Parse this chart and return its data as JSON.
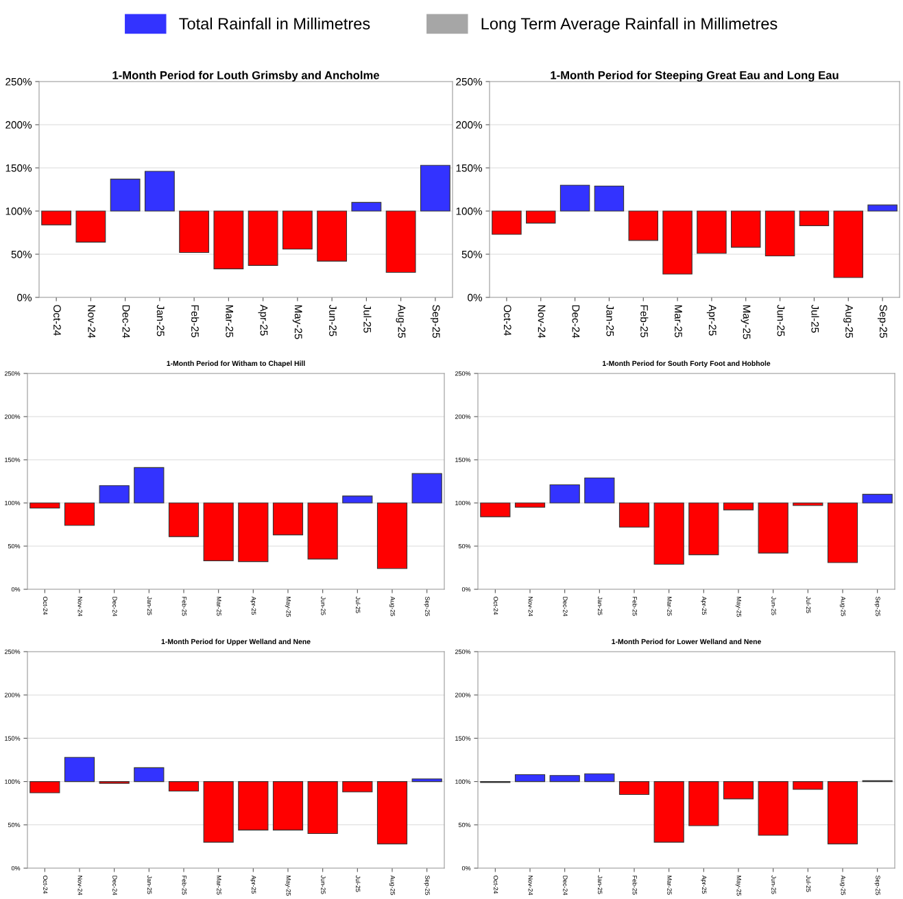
{
  "chart_data": [
    {
      "type": "bar",
      "title": "1-Month Period for Louth Grimsby and Ancholme",
      "categories": [
        "Oct-24",
        "Nov-24",
        "Dec-24",
        "Jan-25",
        "Feb-25",
        "Mar-25",
        "Apr-25",
        "May-25",
        "Jun-25",
        "Jul-25",
        "Aug-25",
        "Sep-25"
      ],
      "ylim": [
        0,
        250
      ],
      "yticks": [
        {
          "value": 0,
          "label": "0%"
        },
        {
          "value": 50,
          "label": "50%"
        },
        {
          "value": 100,
          "label": "100%"
        },
        {
          "value": 150,
          "label": "150%"
        },
        {
          "value": 200,
          "label": "200%"
        },
        {
          "value": 250,
          "label": "250%"
        }
      ],
      "grid": "y",
      "legend": "top",
      "series": [
        {
          "name": "Total Rainfall in Millimetres",
          "color": "#3333ff",
          "base": [
            100,
            100,
            100,
            100,
            100,
            100,
            100,
            100,
            100,
            100,
            100,
            100
          ],
          "values": [
            -16,
            -36,
            37,
            46,
            -48,
            -67,
            -63,
            -44,
            -58,
            10,
            -71,
            53
          ],
          "colors": [
            "#ff0000",
            "#ff0000",
            "#3333ff",
            "#3333ff",
            "#ff0000",
            "#ff0000",
            "#ff0000",
            "#ff0000",
            "#ff0000",
            "#3333ff",
            "#ff0000",
            "#3333ff"
          ]
        },
        {
          "name": "Long Term Average Rainfall in Millimetres",
          "color": "#a6a6a6",
          "values": [
            null,
            null,
            null,
            null,
            null,
            null,
            null,
            null,
            null,
            null,
            null,
            null
          ]
        }
      ]
    },
    {
      "type": "bar",
      "title": "1-Month Period for Steeping Great Eau and Long Eau",
      "categories": [
        "Oct-24",
        "Nov-24",
        "Dec-24",
        "Jan-25",
        "Feb-25",
        "Mar-25",
        "Apr-25",
        "May-25",
        "Jun-25",
        "Jul-25",
        "Aug-25",
        "Sep-25"
      ],
      "ylim": [
        0,
        250
      ],
      "yticks": [
        {
          "value": 0,
          "label": "0%"
        },
        {
          "value": 50,
          "label": "50%"
        },
        {
          "value": 100,
          "label": "100%"
        },
        {
          "value": 150,
          "label": "150%"
        },
        {
          "value": 200,
          "label": "200%"
        },
        {
          "value": 250,
          "label": "250%"
        }
      ],
      "grid": "y",
      "series": [
        {
          "base": [
            100,
            100,
            100,
            100,
            100,
            100,
            100,
            100,
            100,
            100,
            100,
            100
          ],
          "values": [
            -27,
            -14,
            30,
            29,
            -34,
            -73,
            -49,
            -42,
            -52,
            -17,
            -77,
            7
          ],
          "colors": [
            "#ff0000",
            "#ff0000",
            "#3333ff",
            "#3333ff",
            "#ff0000",
            "#ff0000",
            "#ff0000",
            "#ff0000",
            "#ff0000",
            "#ff0000",
            "#ff0000",
            "#3333ff"
          ]
        }
      ]
    },
    {
      "type": "bar",
      "title": "1-Month Period for Witham to Chapel Hill",
      "categories": [
        "Oct-24",
        "Nov-24",
        "Dec-24",
        "Jan-25",
        "Feb-25",
        "Mar-25",
        "Apr-25",
        "May-25",
        "Jun-25",
        "Jul-25",
        "Aug-25",
        "Sep-25"
      ],
      "ylim": [
        0,
        250
      ],
      "yticks": [
        {
          "value": 0,
          "label": "0%"
        },
        {
          "value": 50,
          "label": "50%"
        },
        {
          "value": 100,
          "label": "100%"
        },
        {
          "value": 150,
          "label": "150%"
        },
        {
          "value": 200,
          "label": "200%"
        },
        {
          "value": 250,
          "label": "250%"
        }
      ],
      "grid": "y",
      "series": [
        {
          "base": [
            100,
            100,
            100,
            100,
            100,
            100,
            100,
            100,
            100,
            100,
            100,
            100
          ],
          "values": [
            -6,
            -26,
            20,
            41,
            -39,
            -67,
            -68,
            -37,
            -65,
            8,
            -76,
            34
          ],
          "colors": [
            "#ff0000",
            "#ff0000",
            "#3333ff",
            "#3333ff",
            "#ff0000",
            "#ff0000",
            "#ff0000",
            "#ff0000",
            "#ff0000",
            "#3333ff",
            "#ff0000",
            "#3333ff"
          ]
        }
      ]
    },
    {
      "type": "bar",
      "title": "1-Month Period for South Forty Foot and Hobhole",
      "categories": [
        "Oct-24",
        "Nov-24",
        "Dec-24",
        "Jan-25",
        "Feb-25",
        "Mar-25",
        "Apr-25",
        "May-25",
        "Jun-25",
        "Jul-25",
        "Aug-25",
        "Sep-25"
      ],
      "ylim": [
        0,
        250
      ],
      "yticks": [
        {
          "value": 0,
          "label": "0%"
        },
        {
          "value": 50,
          "label": "50%"
        },
        {
          "value": 100,
          "label": "100%"
        },
        {
          "value": 150,
          "label": "150%"
        },
        {
          "value": 200,
          "label": "200%"
        },
        {
          "value": 250,
          "label": "250%"
        }
      ],
      "grid": "y",
      "series": [
        {
          "base": [
            100,
            100,
            100,
            100,
            100,
            100,
            100,
            100,
            100,
            100,
            100,
            100
          ],
          "values": [
            -16,
            -5,
            21,
            29,
            -28,
            -71,
            -60,
            -8,
            -58,
            -3,
            -69,
            10
          ],
          "colors": [
            "#ff0000",
            "#ff0000",
            "#3333ff",
            "#3333ff",
            "#ff0000",
            "#ff0000",
            "#ff0000",
            "#ff0000",
            "#ff0000",
            "#ff0000",
            "#ff0000",
            "#3333ff"
          ]
        }
      ]
    },
    {
      "type": "bar",
      "title": "1-Month Period for Upper Welland and Nene",
      "categories": [
        "Oct-24",
        "Nov-24",
        "Dec-24",
        "Jan-25",
        "Feb-25",
        "Mar-25",
        "Apr-25",
        "May-25",
        "Jun-25",
        "Jul-25",
        "Aug-25",
        "Sep-25"
      ],
      "ylim": [
        0,
        250
      ],
      "yticks": [
        {
          "value": 0,
          "label": "0%"
        },
        {
          "value": 50,
          "label": "50%"
        },
        {
          "value": 100,
          "label": "100%"
        },
        {
          "value": 150,
          "label": "150%"
        },
        {
          "value": 200,
          "label": "200%"
        },
        {
          "value": 250,
          "label": "250%"
        }
      ],
      "grid": "y",
      "series": [
        {
          "base": [
            100,
            100,
            100,
            100,
            100,
            100,
            100,
            100,
            100,
            100,
            100,
            100
          ],
          "values": [
            -13,
            28,
            -2,
            16,
            -11,
            -70,
            -56,
            -56,
            -60,
            -12,
            -72,
            3
          ],
          "colors": [
            "#ff0000",
            "#3333ff",
            "#ff0000",
            "#3333ff",
            "#ff0000",
            "#ff0000",
            "#ff0000",
            "#ff0000",
            "#ff0000",
            "#ff0000",
            "#ff0000",
            "#3333ff"
          ]
        }
      ]
    },
    {
      "type": "bar",
      "title": "1-Month Period for Lower Welland and Nene",
      "categories": [
        "Oct-24",
        "Nov-24",
        "Dec-24",
        "Jan-25",
        "Feb-25",
        "Mar-25",
        "Apr-25",
        "May-25",
        "Jun-25",
        "Jul-25",
        "Aug-25",
        "Sep-25"
      ],
      "ylim": [
        0,
        250
      ],
      "yticks": [
        {
          "value": 0,
          "label": "0%"
        },
        {
          "value": 50,
          "label": "50%"
        },
        {
          "value": 100,
          "label": "100%"
        },
        {
          "value": 150,
          "label": "150%"
        },
        {
          "value": 200,
          "label": "200%"
        },
        {
          "value": 250,
          "label": "250%"
        }
      ],
      "grid": "y",
      "series": [
        {
          "base": [
            100,
            100,
            100,
            100,
            100,
            100,
            100,
            100,
            100,
            100,
            100,
            100
          ],
          "values": [
            -1,
            8,
            7,
            9,
            -15,
            -70,
            -51,
            -20,
            -62,
            -9,
            -72,
            1
          ],
          "colors": [
            "#ff0000",
            "#3333ff",
            "#3333ff",
            "#3333ff",
            "#ff0000",
            "#ff0000",
            "#ff0000",
            "#ff0000",
            "#ff0000",
            "#ff0000",
            "#ff0000",
            "#3333ff"
          ]
        }
      ]
    }
  ]
}
